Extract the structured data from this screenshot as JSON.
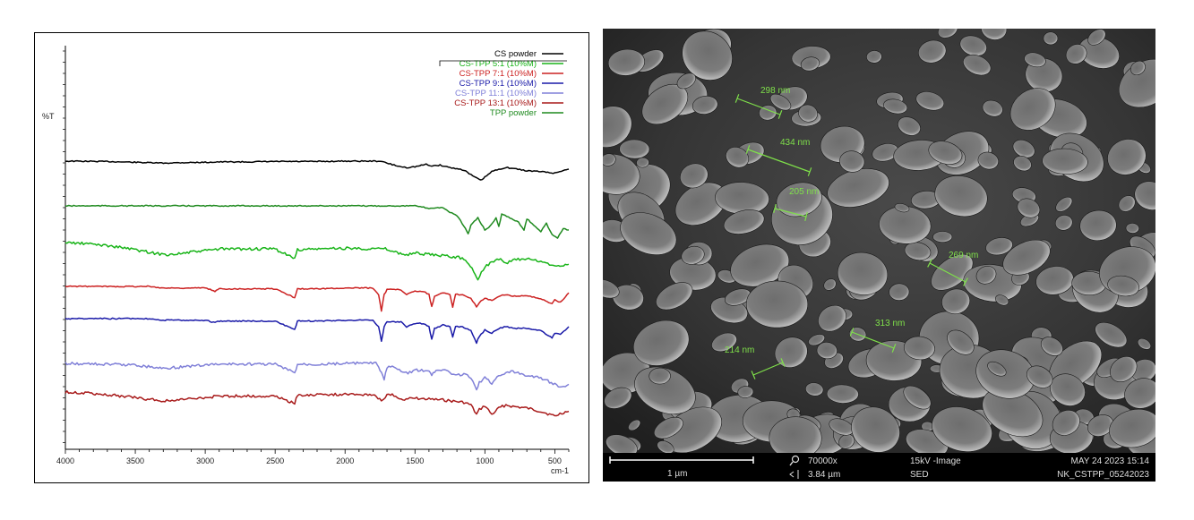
{
  "chart_data": {
    "type": "line",
    "ylabel": "%T",
    "xunit": "cm-1",
    "xlim": [
      4000,
      400
    ],
    "xticks": [
      4000,
      3500,
      3000,
      2500,
      2000,
      1500,
      1000,
      500
    ],
    "grid": false,
    "legend_position": "top-right",
    "series": [
      {
        "name": "CS powder",
        "color": "#000000",
        "x": [
          4000,
          3700,
          3600,
          3400,
          3300,
          3200,
          3000,
          2900,
          2700,
          2500,
          2360,
          2200,
          2000,
          1750,
          1650,
          1600,
          1560,
          1500,
          1420,
          1380,
          1320,
          1250,
          1150,
          1100,
          1060,
          1030,
          1000,
          950,
          900,
          850,
          800,
          700,
          600,
          500,
          430,
          400
        ],
        "y": [
          0,
          0.05,
          0.1,
          0.2,
          0.25,
          0.2,
          0.15,
          0.1,
          0.1,
          0.05,
          0.05,
          0.05,
          0,
          0,
          0.5,
          0.7,
          0.8,
          0.7,
          0.4,
          0.6,
          0.5,
          0.8,
          1.1,
          1.7,
          2.1,
          2.4,
          2.0,
          1.3,
          1.0,
          0.8,
          0.9,
          1.2,
          1.3,
          1.5,
          1.1,
          1.0
        ]
      },
      {
        "name": "TPP powder",
        "color": "#1f8a1f",
        "x": [
          4000,
          3500,
          3000,
          2500,
          2000,
          1500,
          1400,
          1300,
          1250,
          1200,
          1150,
          1120,
          1100,
          1050,
          1000,
          960,
          920,
          900,
          880,
          760,
          720,
          700,
          600,
          560,
          520,
          480,
          440,
          400
        ],
        "y": [
          0,
          0,
          0,
          0,
          0,
          0,
          0.3,
          0.2,
          0.8,
          1.2,
          2.5,
          3.5,
          2.4,
          1.5,
          3.0,
          2.5,
          1.5,
          2.6,
          1.0,
          2.0,
          3.0,
          1.6,
          3.2,
          2.2,
          3.5,
          4.0,
          2.8,
          3.0
        ]
      },
      {
        "name": "CS-TPP 5:1 (10%M)",
        "color": "#18b418",
        "x": [
          4000,
          3800,
          3600,
          3400,
          3300,
          3200,
          3000,
          2900,
          2500,
          2360,
          2340,
          2200,
          2000,
          1700,
          1650,
          1560,
          1500,
          1400,
          1200,
          1150,
          1080,
          1050,
          1000,
          950,
          900,
          850,
          800,
          700,
          600,
          500,
          400
        ],
        "y": [
          0,
          0.2,
          0.6,
          1.2,
          1.5,
          1.4,
          1.0,
          0.8,
          0.8,
          2.0,
          0.9,
          0.8,
          0.7,
          0.8,
          1.2,
          1.5,
          1.3,
          1.5,
          1.8,
          2.0,
          3.5,
          4.5,
          3.0,
          2.4,
          2.0,
          2.6,
          2.2,
          2.0,
          2.4,
          2.9,
          2.7
        ]
      },
      {
        "name": "CS-TPP 7:1 (10%M)",
        "color": "#cc2222",
        "x": [
          4000,
          3400,
          3300,
          3000,
          2930,
          2900,
          2500,
          2360,
          2340,
          2200,
          2000,
          1800,
          1760,
          1740,
          1720,
          1700,
          1600,
          1560,
          1500,
          1440,
          1400,
          1380,
          1360,
          1300,
          1250,
          1230,
          1210,
          1160,
          1100,
          1060,
          1040,
          1000,
          950,
          900,
          850,
          800,
          700,
          600,
          520,
          500,
          460,
          400
        ],
        "y": [
          0,
          0,
          0.2,
          0.2,
          0.6,
          0.3,
          0.3,
          1.4,
          0.3,
          0.3,
          0.2,
          0.2,
          1.0,
          3.0,
          1.0,
          0.4,
          0.4,
          1.0,
          0.6,
          0.6,
          1.0,
          2.5,
          1.2,
          0.8,
          1.0,
          2.6,
          1.0,
          1.0,
          1.5,
          2.5,
          2.0,
          1.4,
          1.8,
          1.2,
          1.0,
          1.2,
          1.2,
          1.5,
          2.2,
          1.6,
          2.0,
          0.8
        ]
      },
      {
        "name": "CS-TPP 9:1 (10%M)",
        "color": "#1a1aa8",
        "x": [
          4000,
          3400,
          3300,
          3000,
          2930,
          2900,
          2500,
          2360,
          2340,
          2200,
          2000,
          1800,
          1760,
          1740,
          1720,
          1700,
          1600,
          1560,
          1500,
          1440,
          1400,
          1380,
          1360,
          1300,
          1250,
          1230,
          1210,
          1160,
          1100,
          1060,
          1040,
          1000,
          950,
          900,
          850,
          800,
          700,
          600,
          520,
          500,
          460,
          400
        ],
        "y": [
          0,
          0,
          0.2,
          0.2,
          0.5,
          0.3,
          0.3,
          1.4,
          0.3,
          0.3,
          0.2,
          0.2,
          1.0,
          2.8,
          1.0,
          0.4,
          0.4,
          1.0,
          0.6,
          0.6,
          1.0,
          2.5,
          1.2,
          0.8,
          1.0,
          2.3,
          1.0,
          1.0,
          1.5,
          3.0,
          2.2,
          1.4,
          1.8,
          1.2,
          1.0,
          1.2,
          1.2,
          1.5,
          2.4,
          1.8,
          2.0,
          1.0
        ]
      },
      {
        "name": "CS-TPP 11:1 (10%M)",
        "color": "#8080d8",
        "x": [
          4000,
          3500,
          3300,
          3200,
          3000,
          2900,
          2500,
          2360,
          2340,
          2200,
          2000,
          1780,
          1750,
          1720,
          1700,
          1650,
          1600,
          1550,
          1500,
          1440,
          1400,
          1380,
          1360,
          1300,
          1250,
          1200,
          1150,
          1100,
          1060,
          1040,
          1000,
          950,
          900,
          850,
          800,
          700,
          600,
          500,
          450,
          400
        ],
        "y": [
          0,
          0.2,
          0.6,
          0.5,
          0.2,
          0.1,
          0.1,
          1.2,
          0.1,
          0.1,
          0.0,
          0.0,
          0.8,
          2.0,
          0.5,
          0.5,
          1.0,
          1.2,
          0.8,
          0.9,
          1.0,
          1.6,
          1.0,
          0.8,
          1.2,
          1.5,
          1.3,
          1.8,
          3.2,
          2.4,
          1.8,
          2.5,
          1.4,
          1.2,
          1.0,
          1.5,
          1.8,
          2.6,
          3.0,
          2.6
        ]
      },
      {
        "name": "CS-TPP 13:1 (10%M)",
        "color": "#a81a1a",
        "x": [
          4000,
          3800,
          3600,
          3400,
          3300,
          3200,
          3000,
          2900,
          2500,
          2360,
          2340,
          2200,
          2000,
          1800,
          1740,
          1700,
          1650,
          1600,
          1500,
          1400,
          1300,
          1200,
          1150,
          1100,
          1060,
          1040,
          1000,
          950,
          900,
          850,
          800,
          700,
          600,
          500,
          450,
          400
        ],
        "y": [
          0,
          0.2,
          0.5,
          0.9,
          1.1,
          1.0,
          0.7,
          0.5,
          0.5,
          1.4,
          0.4,
          0.3,
          0.3,
          0.3,
          1.0,
          0.4,
          0.4,
          0.9,
          0.8,
          0.9,
          1.0,
          1.2,
          1.3,
          1.6,
          2.8,
          2.2,
          1.7,
          2.8,
          2.0,
          1.6,
          1.8,
          2.0,
          2.4,
          3.0,
          2.6,
          2.4
        ]
      }
    ]
  },
  "legend_order": [
    "CS powder",
    "CS-TPP 5:1 (10%M)",
    "CS-TPP 7:1 (10%M)",
    "CS-TPP 9:1 (10%M)",
    "CS-TPP 11:1 (10%M)",
    "CS-TPP 13:1 (10%M)",
    "TPP powder"
  ],
  "legend_colors": {
    "CS powder": "#000000",
    "CS-TPP 5:1 (10%M)": "#18b418",
    "CS-TPP 7:1 (10%M)": "#cc2222",
    "CS-TPP 9:1 (10%M)": "#1a1aa8",
    "CS-TPP 11:1 (10%M)": "#8080d8",
    "CS-TPP 13:1 (10%M)": "#a81a1a",
    "TPP powder": "#1f8a1f"
  },
  "plot_order": [
    "CS powder",
    "TPP powder",
    "CS-TPP 5:1 (10%M)",
    "CS-TPP 7:1 (10%M)",
    "CS-TPP 9:1 (10%M)",
    "CS-TPP 11:1 (10%M)",
    "CS-TPP 13:1 (10%M)"
  ],
  "sem": {
    "measure_color": "#7fe04a",
    "measurements": [
      "298 nm",
      "434 nm",
      "205 nm",
      "269 nm",
      "313 nm",
      "214 nm"
    ],
    "info_bar": {
      "scale_label": "1 µm",
      "magnification": "70000x",
      "field_width": "3.84 µm",
      "voltage_mode": "15kV -Image",
      "detector": "SED",
      "datetime": "MAY 24 2023 15:14",
      "sample_id": "NK_CSTPP_05242023"
    }
  }
}
